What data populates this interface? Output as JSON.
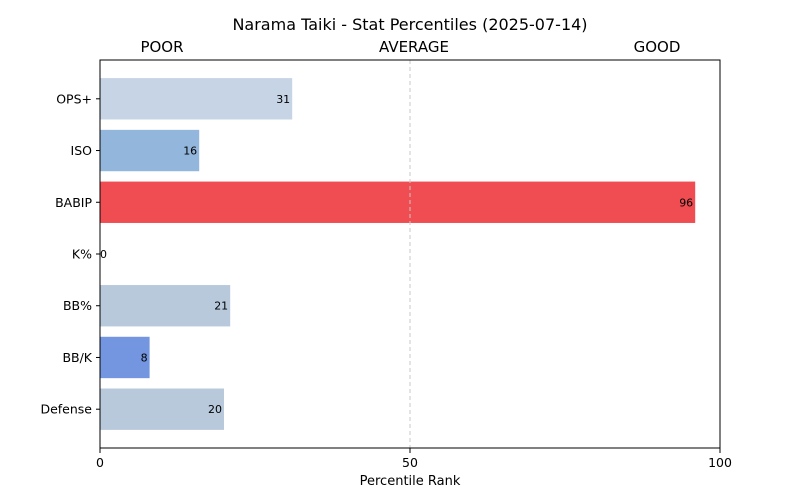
{
  "chart_data": {
    "type": "bar",
    "orientation": "horizontal",
    "title": "Narama Taiki - Stat Percentiles (2025-07-14)",
    "xlabel": "Percentile Rank",
    "ylabel": "",
    "xlim": [
      0,
      100
    ],
    "xticks": [
      "0",
      "50",
      "100"
    ],
    "header_labels": [
      "POOR",
      "AVERAGE",
      "GOOD"
    ],
    "reference_line": {
      "x": 50,
      "style": "dashed"
    },
    "grid": false,
    "categories": [
      "OPS+",
      "ISO",
      "BABIP",
      "K%",
      "BB%",
      "BB/K",
      "Defense"
    ],
    "values": [
      31,
      16,
      96,
      0,
      21,
      8,
      20
    ],
    "value_labels": [
      "31",
      "16",
      "96",
      "0",
      "21",
      "8",
      "20"
    ],
    "colors": [
      "#c6d4e6",
      "#93b6dd",
      "#ef4d51",
      "#f0f0f0",
      "#b8c9dc",
      "#7496e1",
      "#b8c9dc"
    ]
  }
}
